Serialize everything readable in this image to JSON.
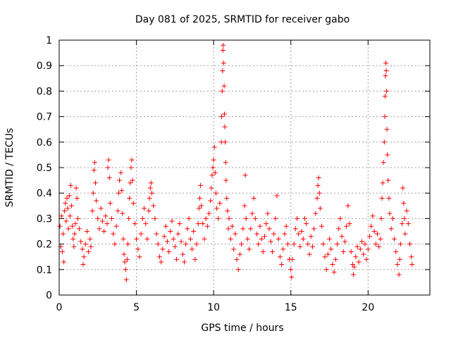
{
  "chart_data": {
    "type": "scatter",
    "title": "Day 081 of 2025, SRMTID for receiver gabo",
    "xlabel": "GPS time / hours",
    "ylabel": "SRMTID / TECUs",
    "xlim": [
      0,
      24
    ],
    "ylim": [
      0,
      1
    ],
    "x_ticks": [
      0,
      5,
      10,
      15,
      20
    ],
    "x_tick_labels": [
      "0",
      "5",
      "10",
      "15",
      "20"
    ],
    "y_ticks": [
      0,
      0.1,
      0.2,
      0.3,
      0.4,
      0.5,
      0.6,
      0.7,
      0.8,
      0.9,
      1
    ],
    "y_tick_labels": [
      "0",
      "0.1",
      "0.2",
      "0.3",
      "0.4",
      "0.5",
      "0.6",
      "0.7",
      "0.8",
      "0.9",
      "1"
    ],
    "grid": true,
    "marker": "+",
    "color": "#ff0000",
    "series": [
      {
        "name": "SRMTID",
        "points": [
          [
            0.05,
            0.27
          ],
          [
            0.1,
            0.19
          ],
          [
            0.15,
            0.31
          ],
          [
            0.2,
            0.17
          ],
          [
            0.25,
            0.24
          ],
          [
            0.3,
            0.13
          ],
          [
            0.35,
            0.33
          ],
          [
            0.4,
            0.36
          ],
          [
            0.45,
            0.29
          ],
          [
            0.5,
            0.38
          ],
          [
            0.55,
            0.34
          ],
          [
            0.6,
            0.26
          ],
          [
            0.65,
            0.39
          ],
          [
            0.7,
            0.31
          ],
          [
            0.75,
            0.43
          ],
          [
            0.8,
            0.35
          ],
          [
            0.85,
            0.27
          ],
          [
            0.9,
            0.22
          ],
          [
            0.95,
            0.19
          ],
          [
            1.0,
            0.24
          ],
          [
            1.05,
            0.28
          ],
          [
            1.1,
            0.42
          ],
          [
            1.15,
            0.38
          ],
          [
            1.2,
            0.3
          ],
          [
            1.3,
            0.26
          ],
          [
            1.4,
            0.21
          ],
          [
            1.5,
            0.18
          ],
          [
            1.55,
            0.12
          ],
          [
            1.6,
            0.15
          ],
          [
            1.7,
            0.2
          ],
          [
            1.8,
            0.25
          ],
          [
            1.9,
            0.17
          ],
          [
            2.0,
            0.22
          ],
          [
            2.05,
            0.19
          ],
          [
            2.15,
            0.33
          ],
          [
            2.2,
            0.4
          ],
          [
            2.25,
            0.49
          ],
          [
            2.3,
            0.52
          ],
          [
            2.35,
            0.44
          ],
          [
            2.4,
            0.37
          ],
          [
            2.5,
            0.3
          ],
          [
            2.6,
            0.26
          ],
          [
            2.7,
            0.34
          ],
          [
            2.8,
            0.29
          ],
          [
            2.9,
            0.25
          ],
          [
            3.0,
            0.31
          ],
          [
            3.1,
            0.28
          ],
          [
            3.15,
            0.5
          ],
          [
            3.2,
            0.53
          ],
          [
            3.25,
            0.46
          ],
          [
            3.3,
            0.36
          ],
          [
            3.4,
            0.3
          ],
          [
            3.5,
            0.24
          ],
          [
            3.6,
            0.2
          ],
          [
            3.7,
            0.27
          ],
          [
            3.8,
            0.33
          ],
          [
            3.85,
            0.4
          ],
          [
            3.9,
            0.45
          ],
          [
            4.0,
            0.48
          ],
          [
            4.05,
            0.41
          ],
          [
            4.1,
            0.32
          ],
          [
            4.15,
            0.22
          ],
          [
            4.2,
            0.16
          ],
          [
            4.25,
            0.13
          ],
          [
            4.3,
            0.1
          ],
          [
            4.35,
            0.06
          ],
          [
            4.4,
            0.14
          ],
          [
            4.45,
            0.2
          ],
          [
            4.5,
            0.3
          ],
          [
            4.55,
            0.38
          ],
          [
            4.6,
            0.44
          ],
          [
            4.65,
            0.5
          ],
          [
            4.7,
            0.53
          ],
          [
            4.75,
            0.45
          ],
          [
            4.8,
            0.36
          ],
          [
            4.9,
            0.28
          ],
          [
            5.0,
            0.22
          ],
          [
            5.1,
            0.18
          ],
          [
            5.2,
            0.15
          ],
          [
            5.3,
            0.24
          ],
          [
            5.4,
            0.3
          ],
          [
            5.5,
            0.34
          ],
          [
            5.6,
            0.28
          ],
          [
            5.7,
            0.22
          ],
          [
            5.8,
            0.33
          ],
          [
            5.85,
            0.38
          ],
          [
            5.9,
            0.42
          ],
          [
            5.95,
            0.44
          ],
          [
            6.0,
            0.4
          ],
          [
            6.1,
            0.35
          ],
          [
            6.2,
            0.3
          ],
          [
            6.3,
            0.24
          ],
          [
            6.4,
            0.2
          ],
          [
            6.5,
            0.15
          ],
          [
            6.6,
            0.13
          ],
          [
            6.7,
            0.18
          ],
          [
            6.8,
            0.23
          ],
          [
            6.9,
            0.27
          ],
          [
            7.0,
            0.21
          ],
          [
            7.1,
            0.17
          ],
          [
            7.2,
            0.25
          ],
          [
            7.3,
            0.29
          ],
          [
            7.4,
            0.22
          ],
          [
            7.5,
            0.19
          ],
          [
            7.6,
            0.14
          ],
          [
            7.7,
            0.24
          ],
          [
            7.8,
            0.28
          ],
          [
            7.9,
            0.21
          ],
          [
            8.0,
            0.16
          ],
          [
            8.1,
            0.13
          ],
          [
            8.2,
            0.2
          ],
          [
            8.3,
            0.26
          ],
          [
            8.4,
            0.3
          ],
          [
            8.5,
            0.22
          ],
          [
            8.6,
            0.18
          ],
          [
            8.7,
            0.25
          ],
          [
            8.8,
            0.14
          ],
          [
            8.9,
            0.2
          ],
          [
            9.0,
            0.28
          ],
          [
            9.05,
            0.34
          ],
          [
            9.1,
            0.38
          ],
          [
            9.15,
            0.43
          ],
          [
            9.2,
            0.35
          ],
          [
            9.3,
            0.28
          ],
          [
            9.4,
            0.22
          ],
          [
            9.5,
            0.3
          ],
          [
            9.6,
            0.27
          ],
          [
            9.7,
            0.32
          ],
          [
            9.8,
            0.37
          ],
          [
            9.85,
            0.42
          ],
          [
            9.9,
            0.47
          ],
          [
            9.95,
            0.5
          ],
          [
            10.0,
            0.53
          ],
          [
            10.05,
            0.58
          ],
          [
            10.1,
            0.48
          ],
          [
            10.15,
            0.4
          ],
          [
            10.2,
            0.34
          ],
          [
            10.3,
            0.3
          ],
          [
            10.4,
            0.36
          ],
          [
            10.5,
            0.6
          ],
          [
            10.52,
            0.7
          ],
          [
            10.55,
            0.8
          ],
          [
            10.58,
            0.88
          ],
          [
            10.6,
            0.96
          ],
          [
            10.62,
            0.98
          ],
          [
            10.65,
            0.91
          ],
          [
            10.68,
            0.82
          ],
          [
            10.7,
            0.71
          ],
          [
            10.72,
            0.66
          ],
          [
            10.75,
            0.6
          ],
          [
            10.78,
            0.52
          ],
          [
            10.8,
            0.45
          ],
          [
            10.85,
            0.38
          ],
          [
            10.9,
            0.33
          ],
          [
            10.95,
            0.26
          ],
          [
            11.0,
            0.3
          ],
          [
            11.1,
            0.22
          ],
          [
            11.2,
            0.27
          ],
          [
            11.3,
            0.18
          ],
          [
            11.4,
            0.24
          ],
          [
            11.5,
            0.14
          ],
          [
            11.6,
            0.1
          ],
          [
            11.7,
            0.16
          ],
          [
            11.8,
            0.2
          ],
          [
            11.9,
            0.26
          ],
          [
            12.0,
            0.35
          ],
          [
            12.05,
            0.47
          ],
          [
            12.1,
            0.3
          ],
          [
            12.2,
            0.22
          ],
          [
            12.3,
            0.18
          ],
          [
            12.4,
            0.26
          ],
          [
            12.5,
            0.32
          ],
          [
            12.6,
            0.38
          ],
          [
            12.7,
            0.3
          ],
          [
            12.8,
            0.24
          ],
          [
            12.9,
            0.2
          ],
          [
            13.0,
            0.27
          ],
          [
            13.1,
            0.22
          ],
          [
            13.2,
            0.17
          ],
          [
            13.3,
            0.23
          ],
          [
            13.4,
            0.28
          ],
          [
            13.5,
            0.32
          ],
          [
            13.6,
            0.26
          ],
          [
            13.7,
            0.21
          ],
          [
            13.8,
            0.17
          ],
          [
            13.9,
            0.24
          ],
          [
            14.0,
            0.3
          ],
          [
            14.1,
            0.39
          ],
          [
            14.2,
            0.22
          ],
          [
            14.3,
            0.15
          ],
          [
            14.4,
            0.12
          ],
          [
            14.5,
            0.18
          ],
          [
            14.6,
            0.24
          ],
          [
            14.7,
            0.27
          ],
          [
            14.8,
            0.2
          ],
          [
            14.9,
            0.14
          ],
          [
            15.0,
            0.1
          ],
          [
            15.05,
            0.07
          ],
          [
            15.1,
            0.14
          ],
          [
            15.2,
            0.2
          ],
          [
            15.3,
            0.26
          ],
          [
            15.4,
            0.3
          ],
          [
            15.5,
            0.24
          ],
          [
            15.6,
            0.19
          ],
          [
            15.7,
            0.25
          ],
          [
            15.8,
            0.22
          ],
          [
            15.9,
            0.3
          ],
          [
            16.0,
            0.28
          ],
          [
            16.1,
            0.2
          ],
          [
            16.2,
            0.16
          ],
          [
            16.3,
            0.23
          ],
          [
            16.4,
            0.19
          ],
          [
            16.5,
            0.26
          ],
          [
            16.6,
            0.32
          ],
          [
            16.7,
            0.38
          ],
          [
            16.75,
            0.43
          ],
          [
            16.8,
            0.46
          ],
          [
            16.85,
            0.4
          ],
          [
            16.9,
            0.34
          ],
          [
            17.0,
            0.27
          ],
          [
            17.1,
            0.2
          ],
          [
            17.2,
            0.15
          ],
          [
            17.3,
            0.1
          ],
          [
            17.4,
            0.16
          ],
          [
            17.5,
            0.22
          ],
          [
            17.6,
            0.18
          ],
          [
            17.7,
            0.12
          ],
          [
            17.8,
            0.09
          ],
          [
            17.9,
            0.14
          ],
          [
            18.0,
            0.2
          ],
          [
            18.1,
            0.26
          ],
          [
            18.2,
            0.3
          ],
          [
            18.3,
            0.23
          ],
          [
            18.4,
            0.17
          ],
          [
            18.5,
            0.21
          ],
          [
            18.6,
            0.27
          ],
          [
            18.7,
            0.35
          ],
          [
            18.8,
            0.28
          ],
          [
            18.9,
            0.17
          ],
          [
            19.0,
            0.12
          ],
          [
            19.05,
            0.08
          ],
          [
            19.1,
            0.11
          ],
          [
            19.2,
            0.15
          ],
          [
            19.3,
            0.19
          ],
          [
            19.4,
            0.13
          ],
          [
            19.5,
            0.18
          ],
          [
            19.6,
            0.21
          ],
          [
            19.7,
            0.16
          ],
          [
            19.8,
            0.2
          ],
          [
            19.9,
            0.14
          ],
          [
            20.0,
            0.18
          ],
          [
            20.1,
            0.23
          ],
          [
            20.2,
            0.27
          ],
          [
            20.3,
            0.31
          ],
          [
            20.4,
            0.25
          ],
          [
            20.5,
            0.2
          ],
          [
            20.6,
            0.24
          ],
          [
            20.7,
            0.19
          ],
          [
            20.8,
            0.22
          ],
          [
            20.85,
            0.3
          ],
          [
            20.9,
            0.38
          ],
          [
            20.95,
            0.44
          ],
          [
            21.0,
            0.52
          ],
          [
            21.05,
            0.6
          ],
          [
            21.08,
            0.7
          ],
          [
            21.1,
            0.78
          ],
          [
            21.12,
            0.86
          ],
          [
            21.15,
            0.91
          ],
          [
            21.18,
            0.88
          ],
          [
            21.2,
            0.8
          ],
          [
            21.22,
            0.65
          ],
          [
            21.25,
            0.55
          ],
          [
            21.3,
            0.45
          ],
          [
            21.35,
            0.38
          ],
          [
            21.4,
            0.32
          ],
          [
            21.5,
            0.26
          ],
          [
            21.6,
            0.3
          ],
          [
            21.7,
            0.22
          ],
          [
            21.8,
            0.17
          ],
          [
            21.9,
            0.12
          ],
          [
            22.0,
            0.08
          ],
          [
            22.05,
            0.14
          ],
          [
            22.1,
            0.2
          ],
          [
            22.2,
            0.28
          ],
          [
            22.25,
            0.42
          ],
          [
            22.3,
            0.36
          ],
          [
            22.35,
            0.3
          ],
          [
            22.4,
            0.24
          ],
          [
            22.5,
            0.33
          ],
          [
            22.6,
            0.28
          ],
          [
            22.7,
            0.2
          ],
          [
            22.8,
            0.15
          ],
          [
            22.85,
            0.12
          ]
        ]
      }
    ]
  }
}
